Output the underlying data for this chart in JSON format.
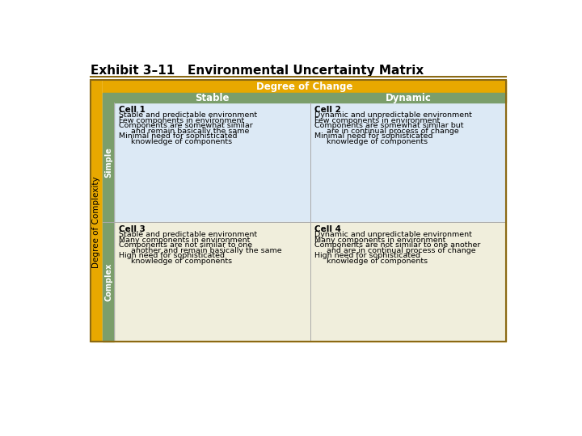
{
  "title": "Exhibit 3–11   Environmental Uncertainty Matrix",
  "title_color": "#000000",
  "title_fontsize": 11,
  "bg_color": "#ffffff",
  "outer_border_color": "#8B6914",
  "header_top_color": "#E8A800",
  "header_top_text": "Degree of Change",
  "header_top_text_color": "#ffffff",
  "header_row_color": "#7B9E6B",
  "header_stable_text": "Stable",
  "header_dynamic_text": "Dynamic",
  "header_text_color": "#ffffff",
  "left_bar_color": "#E8A800",
  "row_label_color": "#7B9E6B",
  "row_label_text_color": "#ffffff",
  "row_labels": [
    "Simple",
    "Complex"
  ],
  "left_axis_label": "Degree of Complexity",
  "left_axis_label_color": "#000000",
  "cell1_bg": "#dce9f5",
  "cell2_bg": "#dce9f5",
  "cell3_bg": "#f0eedc",
  "cell4_bg": "#f0eedc",
  "cell1_title": "Cell 1",
  "cell1_lines": [
    "Stable and predictable environment",
    "Few components in environment",
    "Components are somewhat similar",
    "     and remain basically the same",
    "Minimal need for sophisticated",
    "     knowledge of components"
  ],
  "cell2_title": "Cell 2",
  "cell2_lines": [
    "Dynamic and unpredictable environment",
    "Few components in environment",
    "Components are somewhat similar but",
    "     are in continual process of change",
    "Minimal need for sophisticated",
    "     knowledge of components"
  ],
  "cell3_title": "Cell 3",
  "cell3_lines": [
    "Stable and predictable environment",
    "Many components in environment",
    "Components are not similar to one",
    "     another and remain basically the same",
    "High need for sophisticated",
    "     knowledge of components"
  ],
  "cell4_title": "Cell 4",
  "cell4_lines": [
    "Dynamic and unpredictable environment",
    "Many components in environment",
    "Components are not similar to one another",
    "     and are in continual process of change",
    "High need for sophisticated",
    "     knowledge of components"
  ],
  "cell_title_fontsize": 7.5,
  "cell_body_fontsize": 6.8,
  "divider_color": "#aaaaaa",
  "title_line_color": "#8B6914"
}
